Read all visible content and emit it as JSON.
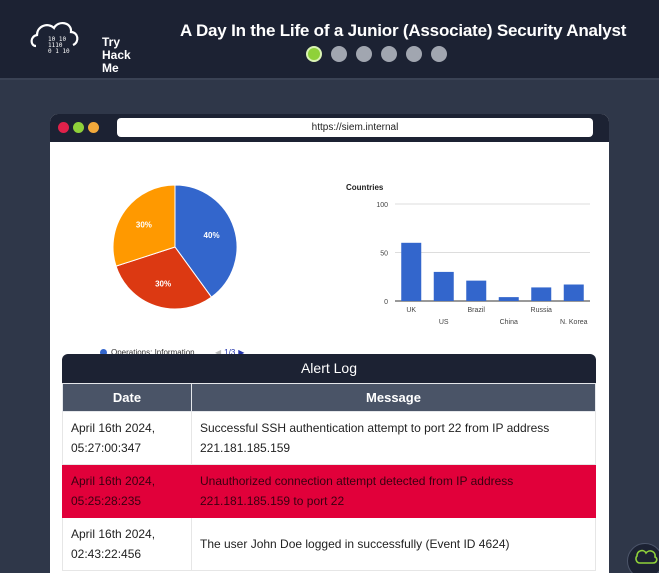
{
  "header": {
    "logo_lines": [
      "Try",
      "Hack",
      "Me"
    ],
    "title": "A Day In the Life of a Junior (Associate) Security Analyst",
    "progress": {
      "current": 1,
      "total": 6
    }
  },
  "browser": {
    "url": "https://siem.internal"
  },
  "pie": {
    "legend_label": "Operations: Information",
    "pager": "1/3",
    "colors": [
      "#3366cc",
      "#dc3912",
      "#ff9900"
    ]
  },
  "chart_data": [
    {
      "type": "pie",
      "values": [
        40,
        30,
        30
      ],
      "labels": [
        "40%",
        "30%",
        "30%"
      ],
      "legend": "Operations: Information"
    },
    {
      "type": "bar",
      "title": "Countries",
      "categories": [
        "UK",
        "US",
        "Brazil",
        "China",
        "Russia",
        "N. Korea"
      ],
      "values": [
        60,
        30,
        21,
        4,
        14,
        17
      ],
      "ylim": [
        0,
        100
      ],
      "yticks": [
        0,
        50,
        100
      ],
      "color": "#3366cc"
    }
  ],
  "alert_log": {
    "title": "Alert Log",
    "columns": [
      "Date",
      "Message"
    ],
    "rows": [
      {
        "date": "April 16th 2024, 05:27:00:347",
        "message": "Successful SSH authentication attempt to port 22 from IP address 221.181.185.159",
        "highlight": false
      },
      {
        "date": "April 16th 2024, 05:25:28:235",
        "message": "Unauthorized connection attempt detected from IP address 221.181.185.159 to port 22",
        "highlight": true
      },
      {
        "date": "April 16th 2024, 02:43:22:456",
        "message": "The user John Doe logged in successfully (Event ID 4624)",
        "highlight": false
      }
    ]
  }
}
